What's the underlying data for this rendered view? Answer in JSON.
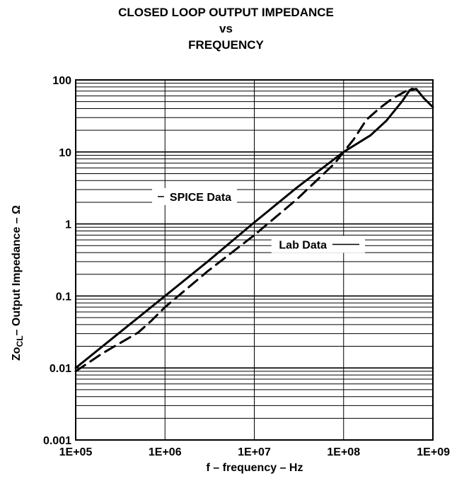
{
  "chart_data": {
    "type": "line",
    "title": [
      "CLOSED LOOP OUTPUT IMPEDANCE",
      "vs",
      "FREQUENCY"
    ],
    "xlabel": "f – frequency – Hz",
    "ylabel": "– Output Impedance – Ω",
    "ylabel_symbol": "Zo",
    "ylabel_subscript": "CL",
    "x_scale": "log",
    "y_scale": "log",
    "xlim": [
      100000,
      1000000000
    ],
    "ylim": [
      0.001,
      100
    ],
    "x_ticks": [
      100000,
      1000000,
      10000000,
      100000000,
      1000000000
    ],
    "x_tick_labels": [
      "1E+05",
      "1E+06",
      "1E+07",
      "1E+08",
      "1E+09"
    ],
    "y_ticks": [
      0.001,
      0.01,
      0.1,
      1,
      10,
      100
    ],
    "y_tick_labels": [
      "0.001",
      "0.01",
      "0.1",
      "1",
      "10",
      "100"
    ],
    "grid": true,
    "series": [
      {
        "name": "SPICE Data",
        "style": "solid",
        "color": "#000000",
        "x": [
          100000,
          200000,
          400000,
          1000000,
          3000000,
          10000000,
          30000000,
          100000000,
          200000000,
          300000000,
          450000000,
          550000000,
          650000000,
          800000000,
          1000000000
        ],
        "y": [
          0.01,
          0.02,
          0.04,
          0.1,
          0.3,
          1.05,
          3.2,
          10,
          17,
          27,
          50,
          72,
          75,
          55,
          42
        ]
      },
      {
        "name": "Lab Data",
        "style": "dashed",
        "color": "#000000",
        "x": [
          100000,
          200000,
          500000,
          700000,
          1000000,
          3000000,
          10000000,
          30000000,
          80000000,
          100000000,
          130000000,
          180000000,
          250000000,
          350000000,
          450000000,
          550000000,
          600000000
        ],
        "y": [
          0.009,
          0.016,
          0.031,
          0.045,
          0.07,
          0.22,
          0.7,
          2.2,
          7,
          10,
          15,
          28,
          40,
          55,
          65,
          75,
          75
        ]
      }
    ],
    "annotations": [
      {
        "text": "SPICE Data",
        "x": 2500000,
        "y": 2.4,
        "leader_from_x": 830000,
        "leader_to_x": 5500000
      },
      {
        "text": "Lab Data",
        "x": 35000000,
        "y": 0.52,
        "leader_from_x": 18000000,
        "leader_to_x": 150000000
      }
    ]
  }
}
